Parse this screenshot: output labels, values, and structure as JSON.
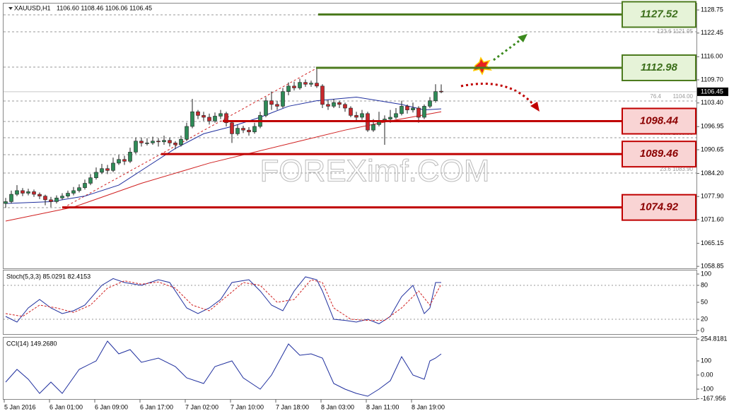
{
  "chart_data": [
    {
      "type": "candlestick",
      "title": "XAUUSD,H1",
      "subtitle": "1106.60 1108.46 1106.06 1106.45",
      "categories": [
        "5 Jan 2016",
        null,
        null,
        null,
        null,
        null,
        null,
        null,
        "6 Jan 01:00",
        null,
        null,
        null,
        null,
        null,
        null,
        null,
        "6 Jan 09:00",
        null,
        null,
        null,
        null,
        null,
        null,
        null,
        "6 Jan 17:00",
        null,
        null,
        null,
        null,
        null,
        null,
        null,
        "7 Jan 02:00",
        null,
        null,
        null,
        null,
        null,
        null,
        null,
        "7 Jan 10:00",
        null,
        null,
        null,
        null,
        null,
        null,
        null,
        "7 Jan 18:00",
        null,
        null,
        null,
        null,
        null,
        null,
        null,
        "8 Jan 03:00",
        null,
        null,
        null,
        null,
        null,
        null,
        null,
        "8 Jan 11:00",
        null,
        null,
        null,
        null,
        null,
        null,
        null,
        "8 Jan 19:00",
        null,
        null,
        null,
        null,
        null
      ],
      "open": [
        1076.0,
        1076.5,
        1078.5,
        1079.5,
        1078.8,
        1079.2,
        1078.5,
        1078.0,
        1077.0,
        1076.5,
        1077.5,
        1078.0,
        1078.8,
        1079.5,
        1080.3,
        1081.5,
        1083.0,
        1084.5,
        1085.5,
        1085.0,
        1087.0,
        1088.0,
        1087.5,
        1090.0,
        1093.0,
        1092.5,
        1092.5,
        1093.0,
        1092.8,
        1093.2,
        1092.5,
        1092.0,
        1093.5,
        1097.0,
        1101.0,
        1100.0,
        1099.5,
        1098.5,
        1099.8,
        1100.5,
        1098.0,
        1095.0,
        1096.5,
        1096.0,
        1095.5,
        1097.0,
        1100.0,
        1104.0,
        1103.0,
        1102.5,
        1106.5,
        1108.0,
        1107.5,
        1109.0,
        1108.5,
        1108.8,
        1108.0,
        1103.0,
        1102.5,
        1103.5,
        1103.0,
        1102.0,
        1100.0,
        1099.5,
        1100.5,
        1096.0,
        1097.5,
        1098.5,
        1099.0,
        1099.5,
        1100.5,
        1102.5,
        1101.5,
        1102.0,
        1099.5,
        1102.5,
        1104.0,
        1106.6
      ],
      "high": [
        1077.5,
        1079.5,
        1081.0,
        1080.2,
        1080.0,
        1079.8,
        1079.0,
        1078.4,
        1077.8,
        1078.2,
        1078.8,
        1079.5,
        1080.5,
        1081.2,
        1082.5,
        1084.0,
        1085.8,
        1086.8,
        1086.5,
        1088.5,
        1089.2,
        1089.0,
        1091.2,
        1094.0,
        1094.0,
        1093.8,
        1094.2,
        1093.8,
        1094.5,
        1094.0,
        1093.0,
        1094.5,
        1098.0,
        1104.5,
        1101.5,
        1101.0,
        1100.5,
        1100.8,
        1101.5,
        1101.0,
        1098.5,
        1097.5,
        1097.2,
        1096.8,
        1098.0,
        1101.0,
        1105.0,
        1106.5,
        1104.0,
        1107.5,
        1109.0,
        1109.2,
        1110.0,
        1109.8,
        1109.5,
        1112.8,
        1108.5,
        1104.2,
        1104.5,
        1104.0,
        1103.5,
        1102.5,
        1101.0,
        1101.5,
        1101.0,
        1099.0,
        1101.0,
        1100.0,
        1101.5,
        1102.0,
        1104.0,
        1103.0,
        1103.5,
        1102.5,
        1103.0,
        1105.0,
        1108.5,
        1108.46
      ],
      "low": [
        1074.8,
        1076.0,
        1078.0,
        1078.0,
        1078.2,
        1077.8,
        1077.2,
        1075.5,
        1075.0,
        1076.0,
        1077.0,
        1077.5,
        1078.2,
        1079.0,
        1079.8,
        1081.0,
        1082.5,
        1084.0,
        1084.0,
        1084.5,
        1086.5,
        1086.5,
        1087.0,
        1089.5,
        1091.5,
        1091.8,
        1092.0,
        1091.5,
        1092.0,
        1091.5,
        1090.8,
        1091.5,
        1093.0,
        1096.5,
        1099.0,
        1098.5,
        1097.5,
        1098.0,
        1099.0,
        1097.0,
        1092.5,
        1094.5,
        1095.2,
        1094.5,
        1095.0,
        1096.5,
        1099.5,
        1101.5,
        1101.5,
        1102.0,
        1105.5,
        1106.8,
        1107.0,
        1107.8,
        1107.8,
        1107.5,
        1102.0,
        1101.5,
        1102.0,
        1102.0,
        1101.0,
        1099.5,
        1098.5,
        1098.8,
        1095.5,
        1095.5,
        1097.0,
        1092.0,
        1098.0,
        1099.0,
        1100.0,
        1100.5,
        1100.8,
        1098.0,
        1099.0,
        1102.0,
        1103.5,
        1106.06
      ],
      "close": [
        1076.5,
        1078.5,
        1079.5,
        1078.8,
        1079.2,
        1078.5,
        1078.0,
        1077.0,
        1076.5,
        1077.5,
        1078.0,
        1078.8,
        1079.5,
        1080.3,
        1081.5,
        1083.0,
        1084.5,
        1085.5,
        1085.0,
        1087.0,
        1088.0,
        1087.5,
        1090.0,
        1093.0,
        1092.5,
        1092.5,
        1093.0,
        1092.8,
        1093.2,
        1092.5,
        1092.0,
        1093.5,
        1097.0,
        1101.0,
        1100.0,
        1099.5,
        1098.5,
        1099.8,
        1100.5,
        1098.0,
        1095.0,
        1096.5,
        1096.0,
        1095.5,
        1097.0,
        1100.0,
        1104.0,
        1103.0,
        1102.5,
        1106.5,
        1108.0,
        1107.5,
        1109.0,
        1108.5,
        1108.8,
        1108.0,
        1103.0,
        1102.5,
        1103.5,
        1103.0,
        1102.0,
        1100.0,
        1099.5,
        1100.5,
        1096.0,
        1097.5,
        1098.5,
        1099.0,
        1099.5,
        1100.5,
        1102.5,
        1101.5,
        1102.0,
        1099.5,
        1102.5,
        1104.0,
        1106.5,
        1106.45
      ],
      "up_color": "#2e8b57",
      "down_color": "#c8282d",
      "ylim": [
        1058.3,
        1130.5
      ],
      "yticks": [
        {
          "value": 1128.75,
          "label": "1128.75"
        },
        {
          "value": 1122.45,
          "label": "1122.45"
        },
        {
          "value": 1116,
          "label": "1116.00"
        },
        {
          "value": 1109.7,
          "label": "1109.70"
        },
        {
          "value": 1103.4,
          "label": "1103.40"
        },
        {
          "value": 1096.95,
          "label": "1096.95"
        },
        {
          "value": 1090.65,
          "label": "1090.65"
        },
        {
          "value": 1084.2,
          "label": "1084.20"
        },
        {
          "value": 1077.9,
          "label": "1077.90"
        },
        {
          "value": 1071.6,
          "label": "1071.60"
        },
        {
          "value": 1065.15,
          "label": "1065.15"
        },
        {
          "value": 1058.85,
          "label": "1058.85"
        }
      ],
      "last_price": 1106.45,
      "levels": [
        {
          "value": 1127.52,
          "color": "#4d7b1f"
        },
        {
          "value": 1112.98,
          "color": "#4d7b1f"
        },
        {
          "value": 1098.44,
          "color": "#c00000"
        },
        {
          "value": 1089.46,
          "color": "#c00000"
        },
        {
          "value": 1074.92,
          "color": "#c00000"
        }
      ],
      "series": [
        {
          "color": "#1f2f9e",
          "x": [
            0,
            8,
            14,
            20,
            25,
            30,
            35,
            40,
            45,
            50,
            55,
            62,
            66,
            70,
            74,
            77
          ],
          "values": [
            1076,
            1076.5,
            1078,
            1081,
            1086,
            1091,
            1095,
            1097,
            1099.5,
            1102.5,
            1104,
            1105,
            1104,
            1103,
            1101.5,
            1101.8
          ]
        },
        {
          "color": "#d02020",
          "x": [
            0,
            12,
            24,
            36,
            44,
            52,
            60,
            68,
            77
          ],
          "values": [
            1071.2,
            1075,
            1081.5,
            1087,
            1090,
            1093,
            1096,
            1098.5,
            1101
          ]
        }
      ],
      "annotations": [
        "123.6 1121.95",
        "76.4",
        "1104.00",
        "50.0 1095.95",
        "23.6 1083.90"
      ],
      "watermark": "FOREXimf.COM"
    },
    {
      "type": "line",
      "title": "Stoch(5,3,3) 85.0291 82.4153",
      "ylim": [
        -6.25,
        106.25
      ],
      "yticks": [
        100,
        80,
        50,
        20,
        0
      ],
      "dotted_levels": [
        80,
        20
      ],
      "series": [
        {
          "color": "#1f2f9e",
          "style": "solid",
          "x": [
            0,
            2,
            4,
            6,
            8,
            10,
            12,
            14,
            17,
            19,
            21,
            24,
            27,
            29,
            32,
            34,
            36,
            38,
            40,
            43,
            45,
            47,
            49,
            51,
            53,
            55,
            56,
            58,
            60,
            62,
            64,
            66,
            68,
            70,
            72,
            73,
            74,
            75,
            76,
            77
          ],
          "values": [
            25,
            15,
            40,
            55,
            40,
            30,
            35,
            45,
            80,
            92,
            85,
            80,
            90,
            85,
            40,
            30,
            40,
            55,
            85,
            90,
            70,
            45,
            35,
            70,
            95,
            90,
            70,
            20,
            18,
            15,
            20,
            12,
            25,
            60,
            80,
            55,
            30,
            40,
            85,
            85
          ]
        },
        {
          "color": "#d02020",
          "style": "dashed",
          "x": [
            0,
            3,
            6,
            9,
            12,
            15,
            18,
            21,
            24,
            27,
            30,
            33,
            36,
            39,
            42,
            45,
            48,
            51,
            54,
            56,
            58,
            61,
            64,
            67,
            70,
            73,
            75,
            77
          ],
          "values": [
            30,
            25,
            45,
            40,
            32,
            45,
            75,
            88,
            82,
            86,
            75,
            45,
            35,
            60,
            85,
            80,
            50,
            55,
            90,
            85,
            40,
            20,
            18,
            18,
            40,
            70,
            45,
            82
          ]
        }
      ]
    },
    {
      "type": "line",
      "title": "CCI(14) 149.2680",
      "ylim": [
        -170,
        265
      ],
      "yticks": [
        254.8181,
        100,
        {
          "value": 0,
          "label": "0.00"
        },
        -100,
        -167.956
      ],
      "series": [
        {
          "color": "#1f2f9e",
          "style": "solid",
          "x": [
            0,
            2,
            4,
            6,
            8,
            10,
            13,
            16,
            18,
            20,
            22,
            24,
            27,
            30,
            32,
            35,
            37,
            40,
            42,
            45,
            47,
            50,
            52,
            54,
            56,
            58,
            60,
            62,
            64,
            66,
            68,
            70,
            72,
            74,
            75,
            76,
            77
          ],
          "values": [
            -50,
            40,
            -30,
            -130,
            -50,
            -130,
            40,
            100,
            240,
            150,
            180,
            90,
            120,
            60,
            -20,
            -60,
            60,
            100,
            -20,
            -100,
            0,
            220,
            140,
            150,
            120,
            -60,
            -100,
            -130,
            -150,
            -100,
            -40,
            130,
            0,
            -30,
            100,
            120,
            149.268
          ]
        }
      ]
    }
  ]
}
